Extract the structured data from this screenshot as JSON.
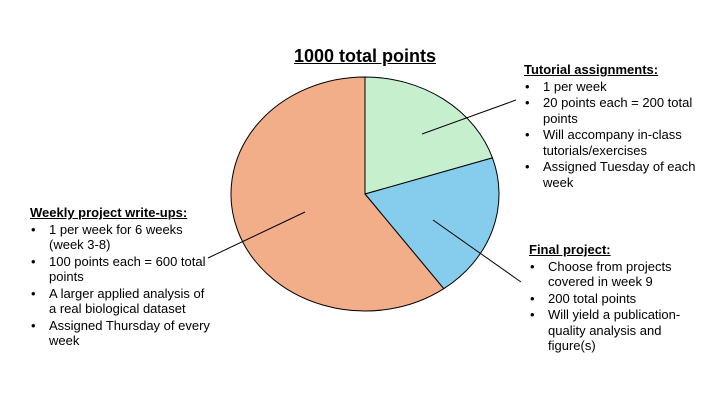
{
  "chart_data": {
    "type": "pie",
    "title": "1000 total points",
    "start_angle_deg": 0,
    "direction": "clockwise",
    "slices": [
      {
        "name": "Tutorial assignments",
        "value": 200,
        "color": "#c6efcd",
        "callout": {
          "heading": "Tutorial assignments:",
          "bullets": [
            "1 per week",
            "20 points each = 200 total points",
            "Will accompany in-class tutorials/exercises",
            "Assigned Tuesday of each week"
          ]
        }
      },
      {
        "name": "Final project",
        "value": 200,
        "color": "#86ccec",
        "callout": {
          "heading": "Final project:",
          "bullets": [
            "Choose from projects covered in week 9",
            "200 total points",
            "Will yield a publication-quality analysis and figure(s)"
          ]
        }
      },
      {
        "name": "Weekly project write-ups",
        "value": 600,
        "color": "#f2ad89",
        "callout": {
          "heading": "Weekly project write-ups:",
          "bullets": [
            "1 per week for 6 weeks (week 3-8)",
            "100 points each = 600 total points",
            "A larger applied analysis of a real biological dataset",
            "Assigned Thursday of every week"
          ]
        }
      }
    ]
  }
}
